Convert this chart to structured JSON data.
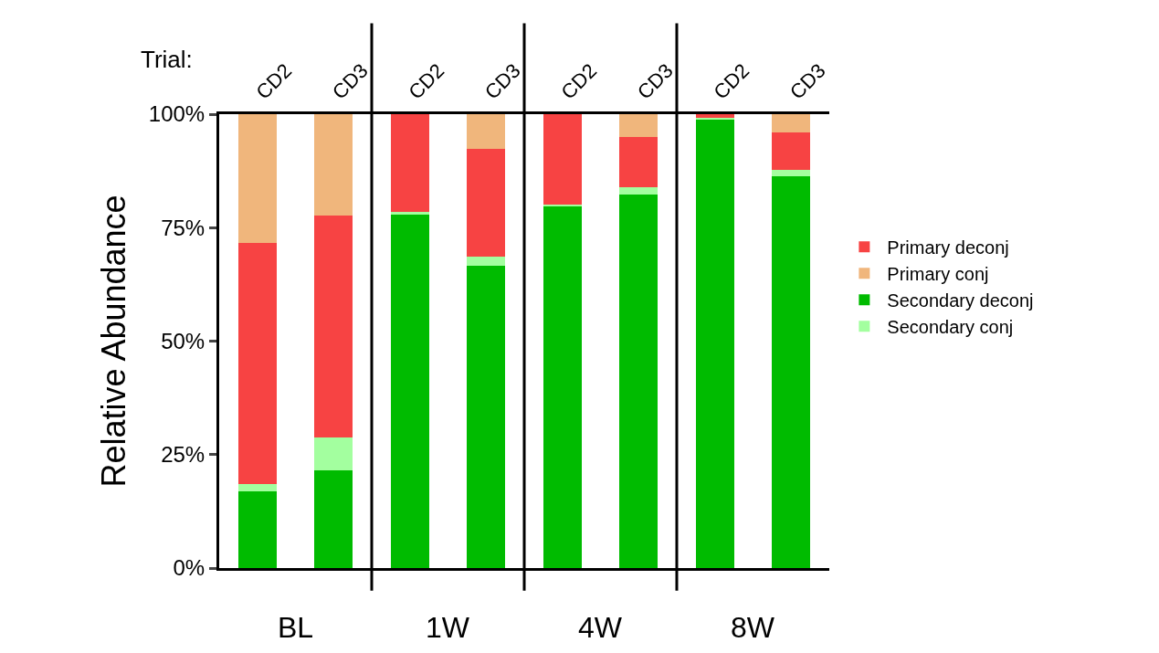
{
  "chart_data": {
    "type": "bar",
    "stacked": true,
    "ylabel": "Relative Abundance",
    "categories": [
      "CD2",
      "CD3",
      "CD2",
      "CD3",
      "CD2",
      "CD3",
      "CD2",
      "CD3"
    ],
    "series": [
      {
        "name": "Secondary deconj",
        "color": "#00bb00",
        "values": [
          17.0,
          21.5,
          78.0,
          66.7,
          79.8,
          82.3,
          98.8,
          86.4
        ]
      },
      {
        "name": "Secondary conj",
        "color": "#a3ff9f",
        "values": [
          1.6,
          7.2,
          0.4,
          2.0,
          0.2,
          1.7,
          0.3,
          1.3
        ]
      },
      {
        "name": "Primary deconj",
        "color": "#f74343",
        "values": [
          53.0,
          48.9,
          21.6,
          23.6,
          20.0,
          11.0,
          0.9,
          8.3
        ]
      },
      {
        "name": "Primary conj",
        "color": "#f0b67c",
        "values": [
          28.4,
          22.4,
          0,
          7.7,
          0,
          5.0,
          0,
          4.0
        ]
      }
    ],
    "ylim": [
      0,
      100
    ],
    "yticks": [
      {
        "value": 0,
        "label": "0%"
      },
      {
        "value": 25,
        "label": "25%"
      },
      {
        "value": 50,
        "label": "50%"
      },
      {
        "value": 75,
        "label": "75%"
      },
      {
        "value": 100,
        "label": "100%"
      }
    ],
    "annotations": [
      "Trial:",
      "BL",
      "1W",
      "4W",
      "8W"
    ],
    "legend": "right"
  }
}
